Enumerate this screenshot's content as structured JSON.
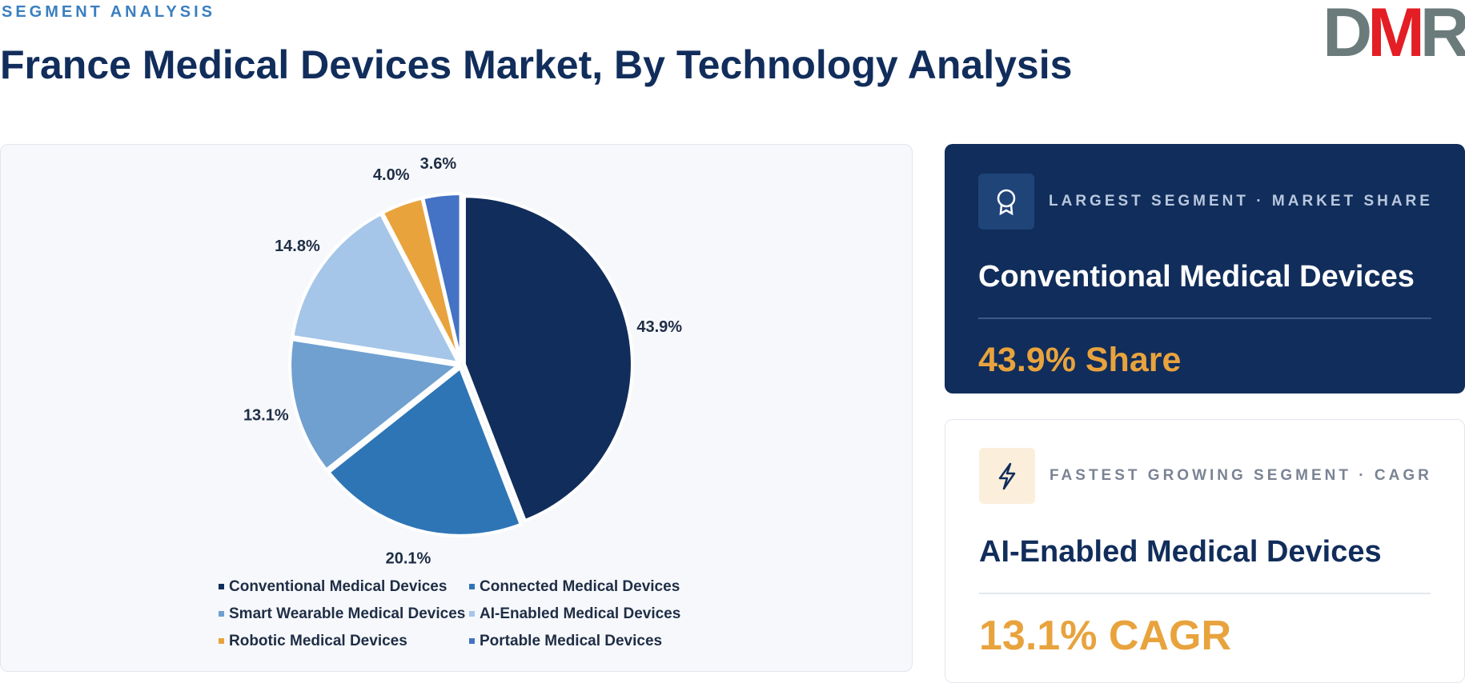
{
  "header": {
    "kicker": "SEGMENT ANALYSIS",
    "title": "France Medical Devices Market, By Technology Analysis",
    "logo": [
      "D",
      "M",
      "R"
    ]
  },
  "chart_data": {
    "type": "pie",
    "categories": [
      "Conventional Medical Devices",
      "Connected Medical Devices",
      "Smart Wearable Medical Devices",
      "AI-Enabled Medical Devices",
      "Robotic Medical Devices",
      "Portable Medical Devices"
    ],
    "values": [
      43.9,
      20.1,
      13.1,
      14.8,
      4.0,
      3.6
    ],
    "value_labels": [
      "43.9%",
      "20.1%",
      "13.1%",
      "14.8%",
      "4.0%",
      "3.6%"
    ],
    "colors": [
      "#112d5b",
      "#2e75b6",
      "#6fa0d0",
      "#a5c6e8",
      "#e8a33d",
      "#4472c4"
    ]
  },
  "cards": [
    {
      "label": "LARGEST SEGMENT · MARKET SHARE",
      "segment": "Conventional Medical Devices",
      "stat": "43.9% Share"
    },
    {
      "label": "FASTEST GROWING SEGMENT · CAGR",
      "segment": "AI-Enabled Medical Devices",
      "stat": "13.1% CAGR"
    }
  ]
}
